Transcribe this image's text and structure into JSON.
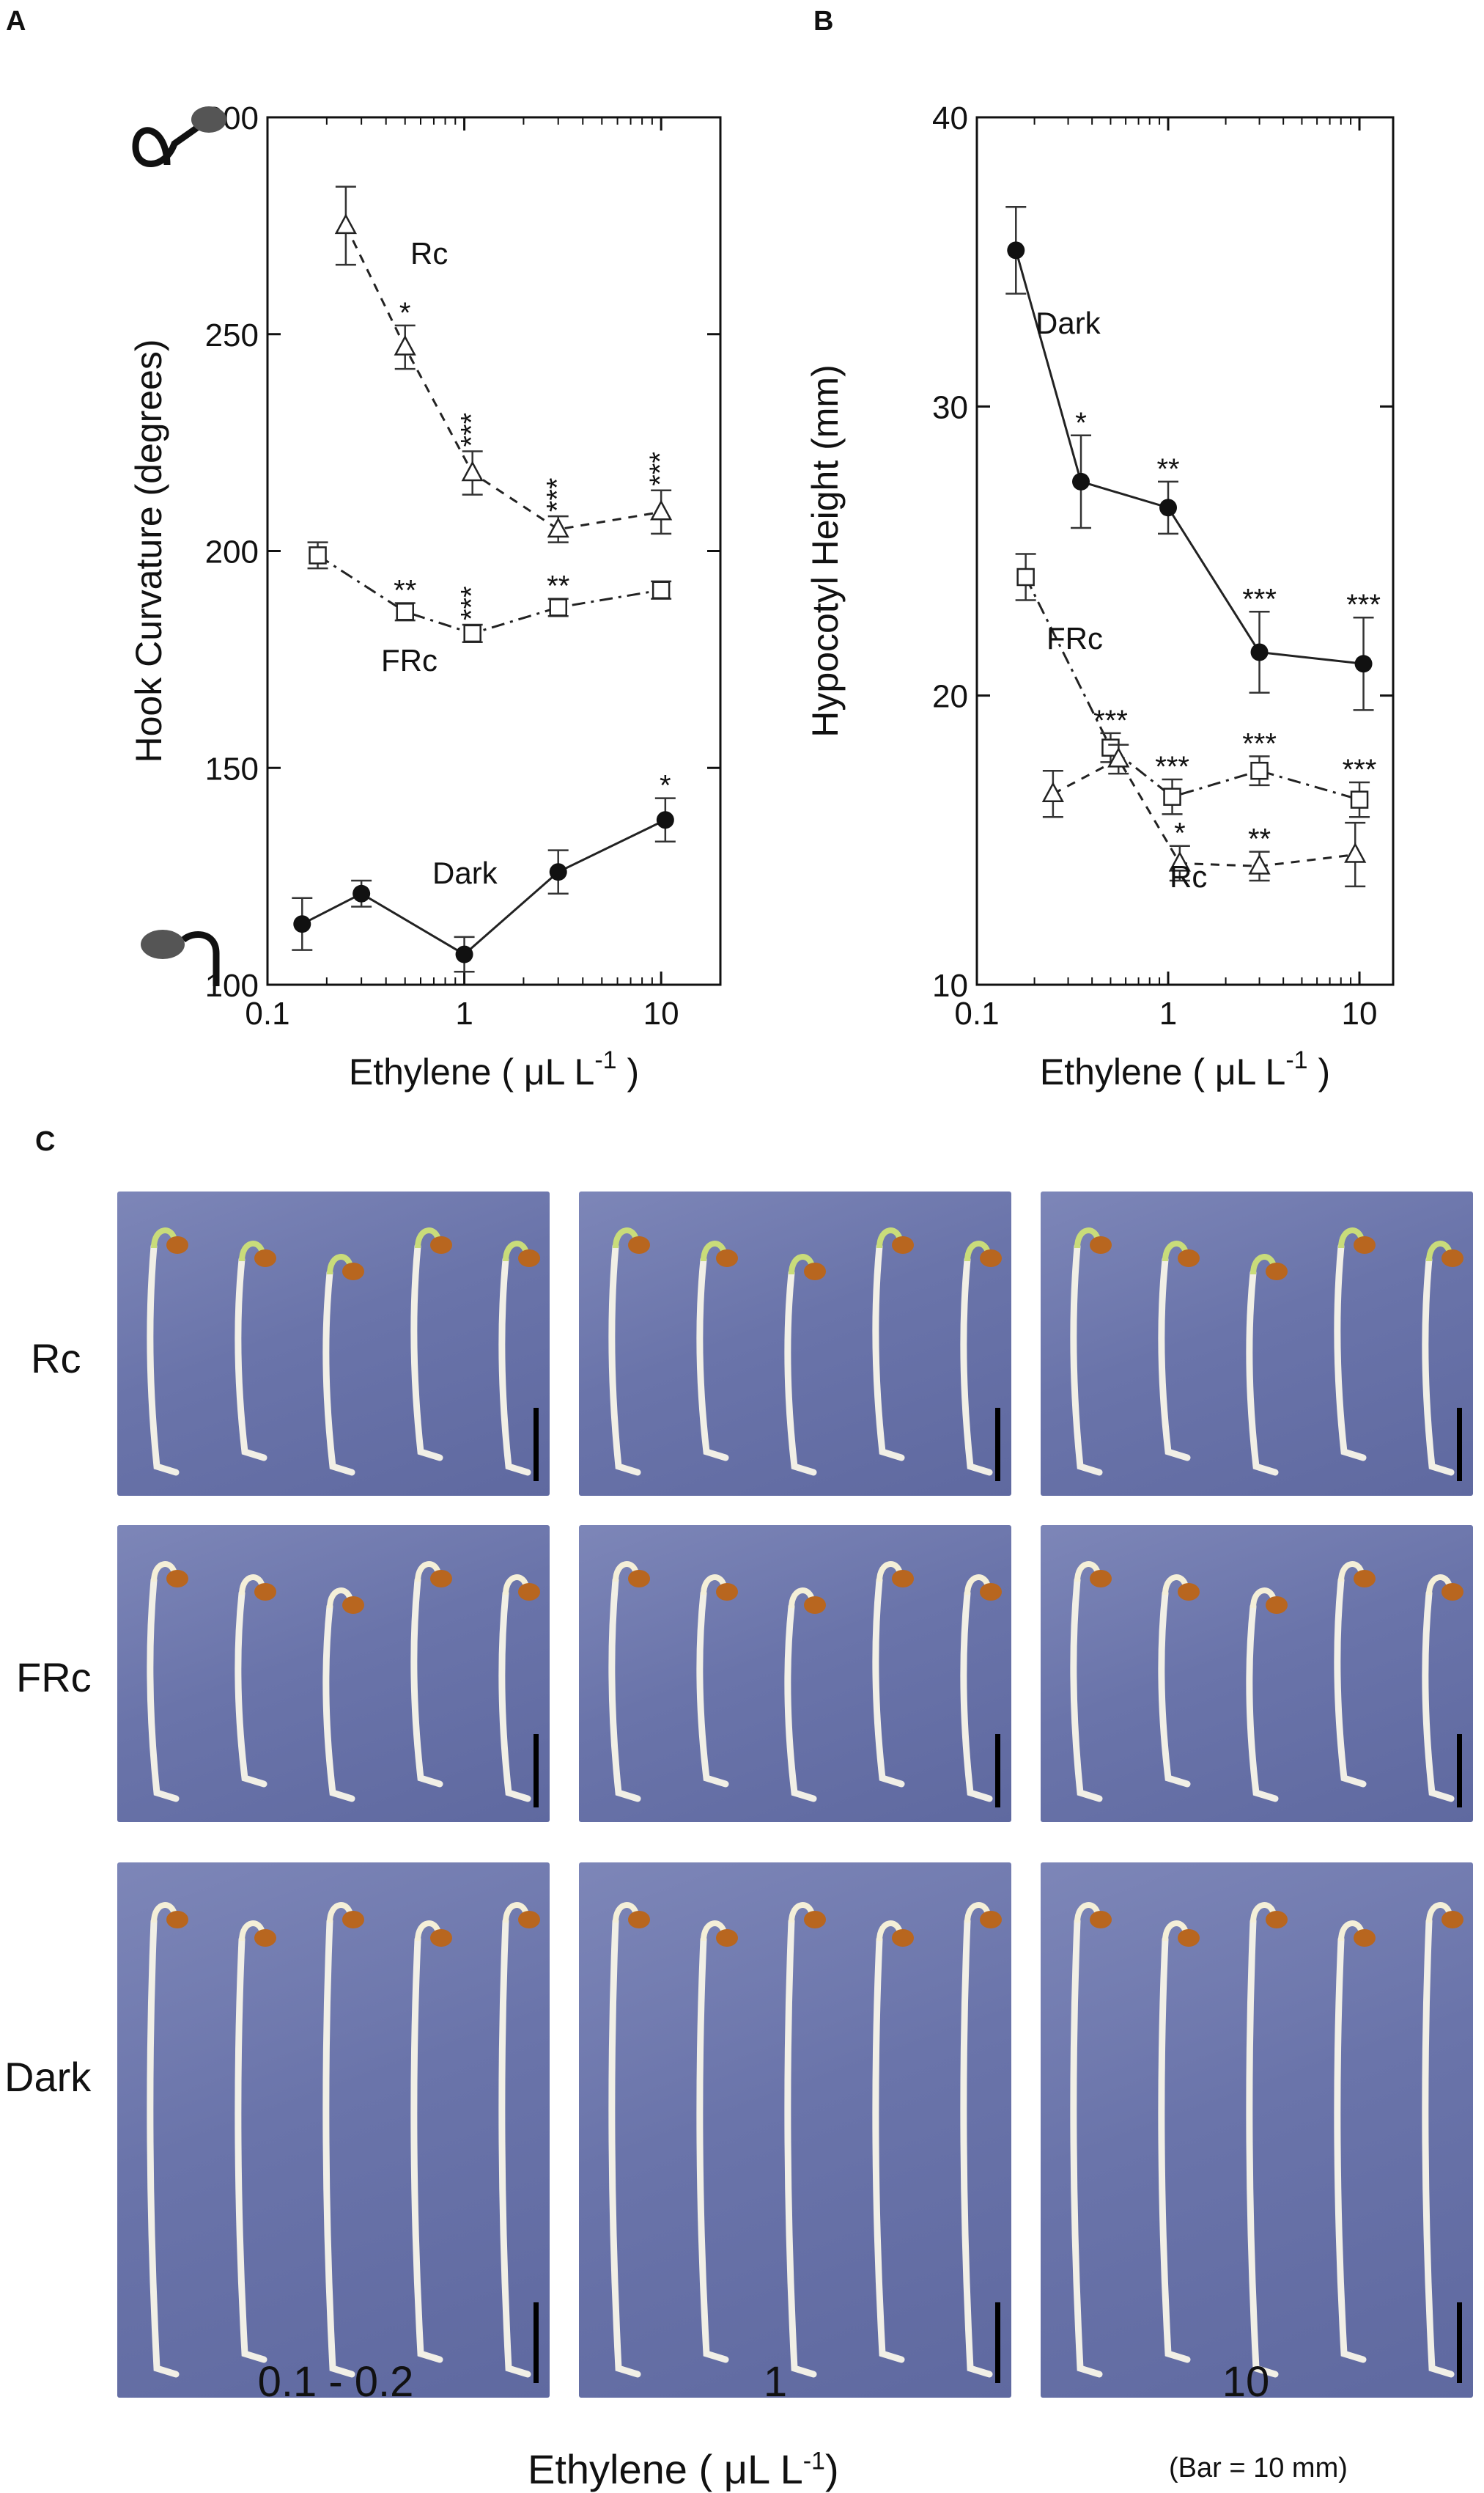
{
  "panel_labels": {
    "a": "A",
    "b": "B",
    "c": "C"
  },
  "chart_data": [
    {
      "type": "line",
      "panel": "A",
      "ylabel": "Hook Curvature (degrees)",
      "xlabel": "Ethylene ( μL  L",
      "xlabel_sup": "-1",
      "xlabel_close": ")",
      "xscale": "log",
      "xlim": [
        0.1,
        20
      ],
      "ylim": [
        100,
        300
      ],
      "xticks": [
        "0.1",
        "1",
        "10"
      ],
      "xtick_values": [
        0.1,
        1,
        10
      ],
      "yticks": [
        100,
        150,
        200,
        250,
        300
      ],
      "series": [
        {
          "name": "Rc",
          "marker": "open-triangle",
          "linestyle": "dashed",
          "x": [
            0.25,
            0.5,
            1.1,
            3,
            10
          ],
          "y": [
            275,
            247,
            218,
            205,
            209
          ],
          "err": [
            9,
            5,
            5,
            3,
            5
          ],
          "sig": [
            "",
            "*",
            "***",
            "***",
            "***"
          ]
        },
        {
          "name": "FRc",
          "marker": "open-square",
          "linestyle": "dashdot",
          "x": [
            0.18,
            0.5,
            1.1,
            3,
            10
          ],
          "y": [
            199,
            186,
            181,
            187,
            191
          ],
          "err": [
            3,
            2,
            2,
            2,
            2
          ],
          "sig": [
            "",
            "**",
            "***",
            "**",
            ""
          ]
        },
        {
          "name": "Dark",
          "marker": "filled-circle",
          "linestyle": "solid",
          "x": [
            0.15,
            0.3,
            1,
            3,
            10.5
          ],
          "y": [
            114,
            121,
            107,
            126,
            138
          ],
          "err": [
            6,
            3,
            4,
            5,
            5
          ],
          "sig": [
            "",
            "",
            "",
            "",
            "*"
          ]
        }
      ]
    },
    {
      "type": "line",
      "panel": "B",
      "ylabel": "Hypocotyl Height (mm)",
      "xlabel": "Ethylene ( μL  L",
      "xlabel_sup": "-1",
      "xlabel_close": ")",
      "xscale": "log",
      "xlim": [
        0.1,
        15
      ],
      "ylim": [
        10,
        40
      ],
      "xticks": [
        "0.1",
        "1",
        "10"
      ],
      "xtick_values": [
        0.1,
        1,
        10
      ],
      "yticks": [
        10,
        20,
        30,
        40
      ],
      "series": [
        {
          "name": "Dark",
          "marker": "filled-circle",
          "linestyle": "solid",
          "x": [
            0.16,
            0.35,
            1,
            3,
            10.5
          ],
          "y": [
            35.4,
            27.4,
            26.5,
            21.5,
            21.1
          ],
          "err": [
            1.5,
            1.6,
            0.9,
            1.4,
            1.6
          ],
          "sig": [
            "",
            "*",
            "**",
            "***",
            "***"
          ]
        },
        {
          "name": "FRc",
          "marker": "open-square",
          "linestyle": "dashdot",
          "x": [
            0.18,
            0.5,
            1.05,
            3,
            10
          ],
          "y": [
            24.1,
            18.2,
            16.5,
            17.4,
            16.4
          ],
          "err": [
            0.8,
            0.5,
            0.6,
            0.5,
            0.6
          ],
          "sig": [
            "",
            "***",
            "***",
            "***",
            "***"
          ]
        },
        {
          "name": "Rc",
          "marker": "open-triangle",
          "linestyle": "dashed",
          "x": [
            0.25,
            0.55,
            1.15,
            3,
            9.5
          ],
          "y": [
            16.6,
            17.8,
            14.2,
            14.1,
            14.5
          ],
          "err": [
            0.8,
            0.5,
            0.6,
            0.5,
            1.1
          ],
          "sig": [
            "",
            "",
            "*",
            "**",
            ""
          ]
        }
      ]
    }
  ],
  "photos": {
    "row_labels": [
      "Rc",
      "FRc",
      "Dark"
    ],
    "col_labels": [
      "0.1 - 0.2",
      "1",
      "10"
    ],
    "xlabel": "Ethylene  ( μL  L",
    "xlabel_sup": "-1",
    "xlabel_close": ")",
    "bar_note": "(Bar = 10 mm)"
  }
}
